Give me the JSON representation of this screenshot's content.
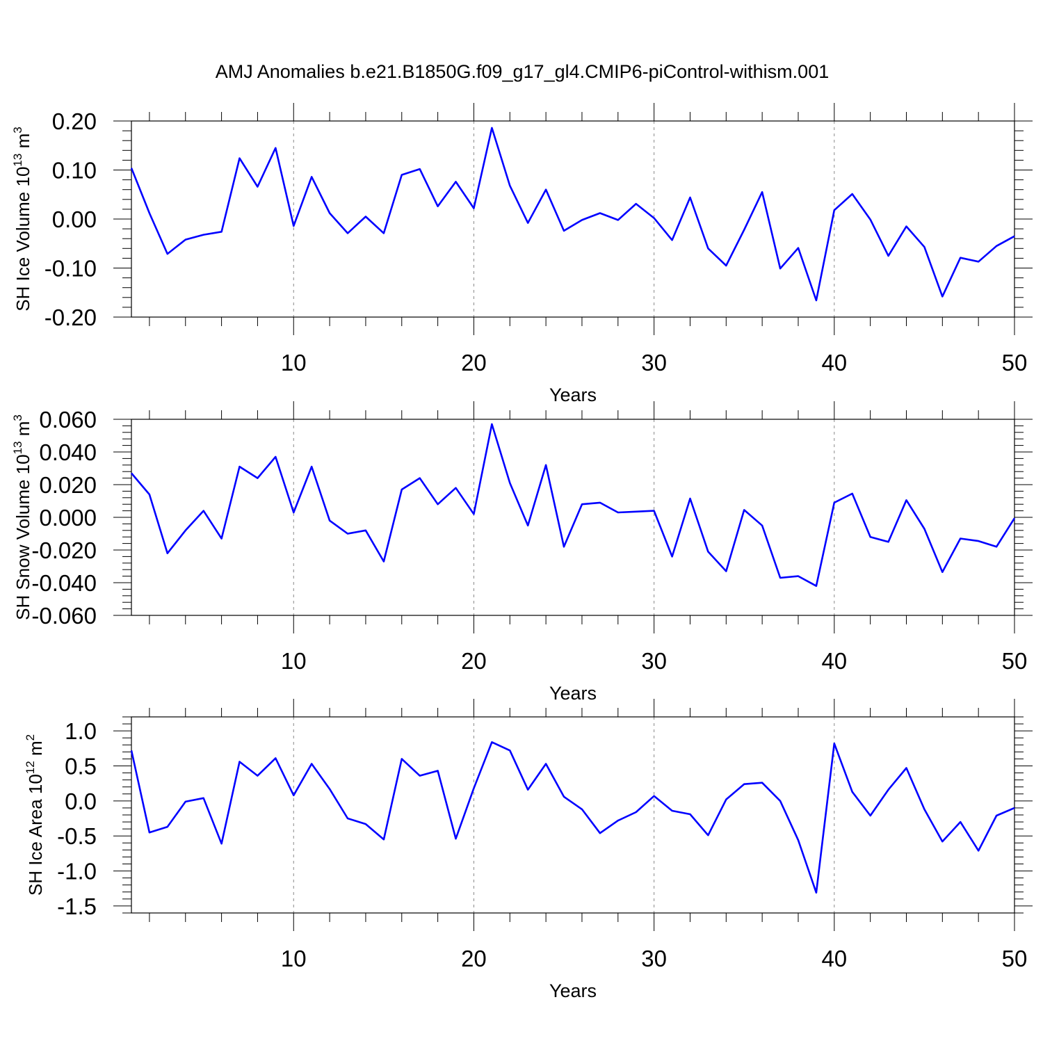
{
  "title": "AMJ Anomalies b.e21.B1850G.f09_g17_gl4.CMIP6-piControl-withism.001",
  "colors": {
    "line": "#0000ff",
    "axis": "#000000",
    "grid": "#888888"
  },
  "chart_data": [
    {
      "type": "line",
      "ylabel": {
        "main": "SH Ice Volume 10",
        "sup": "13",
        "tail": " m",
        "unit_sup": "3"
      },
      "xlabel": "Years",
      "xlim": [
        1,
        50
      ],
      "ylim": [
        -0.2,
        0.2
      ],
      "xticks": [
        10,
        20,
        30,
        40,
        50
      ],
      "yticks": [
        {
          "v": 0.2,
          "label": "0.20"
        },
        {
          "v": 0.1,
          "label": "0.10"
        },
        {
          "v": 0.0,
          "label": "0.00"
        },
        {
          "v": -0.1,
          "label": "-0.10"
        },
        {
          "v": -0.2,
          "label": "-0.20"
        }
      ],
      "grid": "vertical dashed at major x ticks",
      "series": [
        {
          "x": [
            1,
            2,
            3,
            4,
            5,
            6,
            7,
            8,
            9,
            10,
            11,
            12,
            13,
            14,
            15,
            16,
            17,
            18,
            19,
            20,
            21,
            22,
            23,
            24,
            25,
            26,
            27,
            28,
            29,
            30,
            31,
            32,
            33,
            34,
            35,
            36,
            37,
            38,
            39,
            40,
            41,
            42,
            43,
            44,
            45,
            46,
            47,
            48,
            49,
            50
          ],
          "values": [
            0.104,
            0.012,
            -0.071,
            -0.042,
            -0.032,
            -0.026,
            0.124,
            0.066,
            0.145,
            -0.014,
            0.086,
            0.012,
            -0.029,
            0.005,
            -0.029,
            0.09,
            0.102,
            0.026,
            0.076,
            0.022,
            0.186,
            0.068,
            -0.008,
            0.06,
            -0.024,
            -0.002,
            0.012,
            -0.002,
            0.031,
            0.002,
            -0.043,
            0.044,
            -0.06,
            -0.095,
            -0.022,
            0.055,
            -0.101,
            -0.059,
            -0.166,
            0.018,
            0.051,
            -0.001,
            -0.075,
            -0.015,
            -0.057,
            -0.158,
            -0.079,
            -0.087,
            -0.055,
            -0.035
          ]
        }
      ]
    },
    {
      "type": "line",
      "ylabel": {
        "main": "SH Snow Volume 10",
        "sup": "13",
        "tail": " m",
        "unit_sup": "3"
      },
      "xlabel": "Years",
      "xlim": [
        1,
        50
      ],
      "ylim": [
        -0.06,
        0.06
      ],
      "xticks": [
        10,
        20,
        30,
        40,
        50
      ],
      "yticks": [
        {
          "v": 0.06,
          "label": "0.060"
        },
        {
          "v": 0.04,
          "label": "0.040"
        },
        {
          "v": 0.02,
          "label": "0.020"
        },
        {
          "v": 0.0,
          "label": "0.000"
        },
        {
          "v": -0.02,
          "label": "-0.020"
        },
        {
          "v": -0.04,
          "label": "-0.040"
        },
        {
          "v": -0.06,
          "label": "-0.060"
        }
      ],
      "grid": "vertical dashed at major x ticks",
      "series": [
        {
          "x": [
            1,
            2,
            3,
            4,
            5,
            6,
            7,
            8,
            9,
            10,
            11,
            12,
            13,
            14,
            15,
            16,
            17,
            18,
            19,
            20,
            21,
            22,
            23,
            24,
            25,
            26,
            27,
            28,
            29,
            30,
            31,
            32,
            33,
            34,
            35,
            36,
            37,
            38,
            39,
            40,
            41,
            42,
            43,
            44,
            45,
            46,
            47,
            48,
            49,
            50
          ],
          "values": [
            0.027,
            0.014,
            -0.022,
            -0.008,
            0.004,
            -0.013,
            0.031,
            0.024,
            0.037,
            0.003,
            0.031,
            -0.002,
            -0.01,
            -0.008,
            -0.027,
            0.017,
            0.024,
            0.008,
            0.018,
            0.002,
            0.057,
            0.021,
            -0.005,
            0.032,
            -0.018,
            0.008,
            0.009,
            0.003,
            0.0035,
            0.004,
            -0.024,
            0.0115,
            -0.021,
            -0.033,
            0.0045,
            -0.005,
            -0.037,
            -0.036,
            -0.042,
            0.009,
            0.0145,
            -0.012,
            -0.015,
            0.0105,
            -0.007,
            -0.0335,
            -0.013,
            -0.0145,
            -0.018,
            -0.0005
          ]
        }
      ]
    },
    {
      "type": "line",
      "ylabel": {
        "main": "SH Ice Area 10",
        "sup": "12",
        "tail": " m",
        "unit_sup": "2"
      },
      "xlabel": "Years",
      "xlim": [
        1,
        50
      ],
      "ylim": [
        -1.6,
        1.2
      ],
      "xticks": [
        10,
        20,
        30,
        40,
        50
      ],
      "yticks": [
        {
          "v": 1.0,
          "label": "1.0"
        },
        {
          "v": 0.5,
          "label": "0.5"
        },
        {
          "v": 0.0,
          "label": "0.0"
        },
        {
          "v": -0.5,
          "label": "-0.5"
        },
        {
          "v": -1.0,
          "label": "-1.0"
        },
        {
          "v": -1.5,
          "label": "-1.5"
        }
      ],
      "grid": "vertical dashed at major x ticks",
      "series": [
        {
          "x": [
            1,
            2,
            3,
            4,
            5,
            6,
            7,
            8,
            9,
            10,
            11,
            12,
            13,
            14,
            15,
            16,
            17,
            18,
            19,
            20,
            21,
            22,
            23,
            24,
            25,
            26,
            27,
            28,
            29,
            30,
            31,
            32,
            33,
            34,
            35,
            36,
            37,
            38,
            39,
            40,
            41,
            42,
            43,
            44,
            45,
            46,
            47,
            48,
            49,
            50
          ],
          "values": [
            0.72,
            -0.45,
            -0.37,
            -0.01,
            0.04,
            -0.61,
            0.56,
            0.36,
            0.61,
            0.08,
            0.53,
            0.17,
            -0.25,
            -0.33,
            -0.55,
            0.6,
            0.36,
            0.43,
            -0.54,
            0.18,
            0.84,
            0.72,
            0.16,
            0.53,
            0.06,
            -0.12,
            -0.46,
            -0.28,
            -0.16,
            0.07,
            -0.14,
            -0.19,
            -0.49,
            0.02,
            0.24,
            0.26,
            0.0,
            -0.56,
            -1.31,
            0.82,
            0.13,
            -0.21,
            0.16,
            0.47,
            -0.12,
            -0.58,
            -0.3,
            -0.71,
            -0.21,
            -0.1
          ]
        }
      ]
    }
  ]
}
